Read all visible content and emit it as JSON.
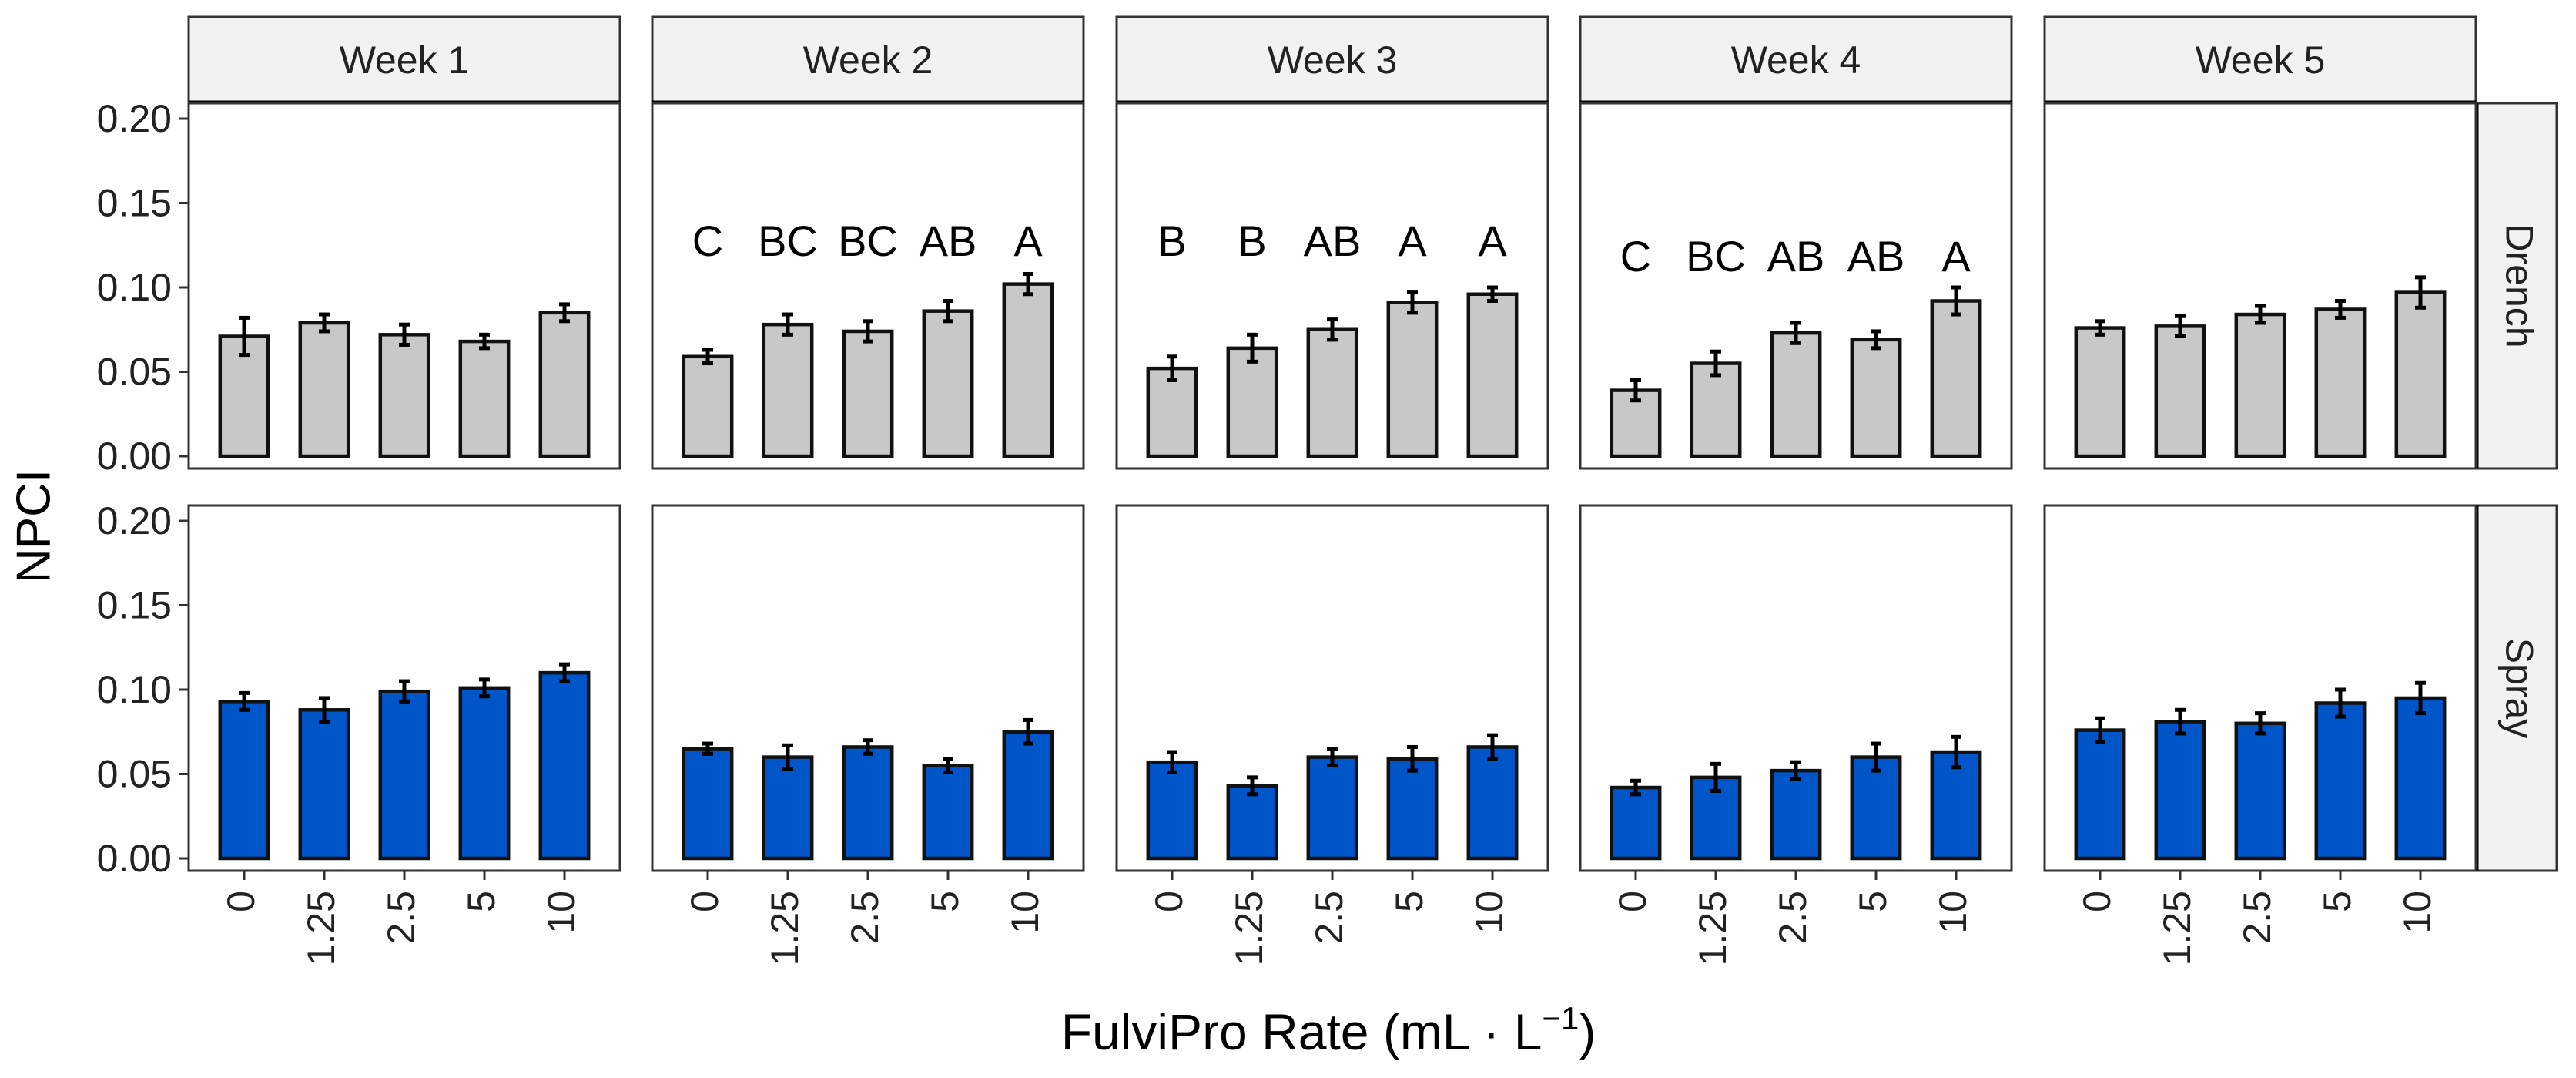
{
  "chart_data": {
    "type": "bar",
    "layout": "faceted-grid",
    "ylabel": "NPCI",
    "xlabel": "FulviPro Rate (mL · L",
    "xlabel_superscript": "−1",
    "xlabel_close": ")",
    "ylim": [
      0,
      0.2
    ],
    "yticks": [
      "0.00",
      "0.05",
      "0.10",
      "0.15",
      "0.20"
    ],
    "categories": [
      "0",
      "1.25",
      "2.5",
      "5",
      "10"
    ],
    "columns": [
      "Week 1",
      "Week 2",
      "Week 3",
      "Week 4",
      "Week 5"
    ],
    "rows": [
      {
        "name": "Drench",
        "color": "#c8c8c8"
      },
      {
        "name": "Spray",
        "color": "#0055c8"
      }
    ],
    "series": [
      {
        "name": "Drench",
        "week": "Week 1",
        "values": [
          0.071,
          0.079,
          0.072,
          0.068,
          0.085
        ],
        "errors": [
          0.011,
          0.005,
          0.006,
          0.004,
          0.005
        ],
        "letters": [
          "",
          "",
          "",
          "",
          ""
        ]
      },
      {
        "name": "Drench",
        "week": "Week 2",
        "values": [
          0.059,
          0.078,
          0.074,
          0.086,
          0.102
        ],
        "errors": [
          0.004,
          0.006,
          0.006,
          0.006,
          0.006
        ],
        "letters": [
          "C",
          "BC",
          "BC",
          "AB",
          "A"
        ]
      },
      {
        "name": "Drench",
        "week": "Week 3",
        "values": [
          0.052,
          0.064,
          0.075,
          0.091,
          0.096
        ],
        "errors": [
          0.007,
          0.008,
          0.006,
          0.006,
          0.004
        ],
        "letters": [
          "B",
          "B",
          "AB",
          "A",
          "A"
        ]
      },
      {
        "name": "Drench",
        "week": "Week 4",
        "values": [
          0.039,
          0.055,
          0.073,
          0.069,
          0.092
        ],
        "errors": [
          0.006,
          0.007,
          0.006,
          0.005,
          0.008
        ],
        "letters": [
          "C",
          "BC",
          "AB",
          "AB",
          "A"
        ]
      },
      {
        "name": "Drench",
        "week": "Week 5",
        "values": [
          0.076,
          0.077,
          0.084,
          0.087,
          0.097
        ],
        "errors": [
          0.004,
          0.006,
          0.005,
          0.005,
          0.009
        ],
        "letters": [
          "",
          "",
          "",
          "",
          ""
        ]
      },
      {
        "name": "Spray",
        "week": "Week 1",
        "values": [
          0.093,
          0.088,
          0.099,
          0.101,
          0.11
        ],
        "errors": [
          0.005,
          0.007,
          0.006,
          0.005,
          0.005
        ],
        "letters": [
          "",
          "",
          "",
          "",
          ""
        ]
      },
      {
        "name": "Spray",
        "week": "Week 2",
        "values": [
          0.065,
          0.06,
          0.066,
          0.055,
          0.075
        ],
        "errors": [
          0.003,
          0.007,
          0.004,
          0.004,
          0.007
        ],
        "letters": [
          "",
          "",
          "",
          "",
          ""
        ]
      },
      {
        "name": "Spray",
        "week": "Week 3",
        "values": [
          0.057,
          0.043,
          0.06,
          0.059,
          0.066
        ],
        "errors": [
          0.006,
          0.005,
          0.005,
          0.007,
          0.007
        ],
        "letters": [
          "",
          "",
          "",
          "",
          ""
        ]
      },
      {
        "name": "Spray",
        "week": "Week 4",
        "values": [
          0.042,
          0.048,
          0.052,
          0.06,
          0.063
        ],
        "errors": [
          0.004,
          0.008,
          0.005,
          0.008,
          0.009
        ],
        "letters": [
          "",
          "",
          "",
          "",
          ""
        ]
      },
      {
        "name": "Spray",
        "week": "Week 5",
        "values": [
          0.076,
          0.081,
          0.08,
          0.092,
          0.095
        ],
        "errors": [
          0.007,
          0.007,
          0.006,
          0.008,
          0.009
        ],
        "letters": [
          "",
          "",
          "",
          "",
          ""
        ]
      }
    ],
    "grid": false,
    "legend": "none",
    "colors": {
      "drench": "#c8c8c8",
      "spray": "#0055c8",
      "strip": "#f2f2f2",
      "ink": "#000000"
    }
  }
}
